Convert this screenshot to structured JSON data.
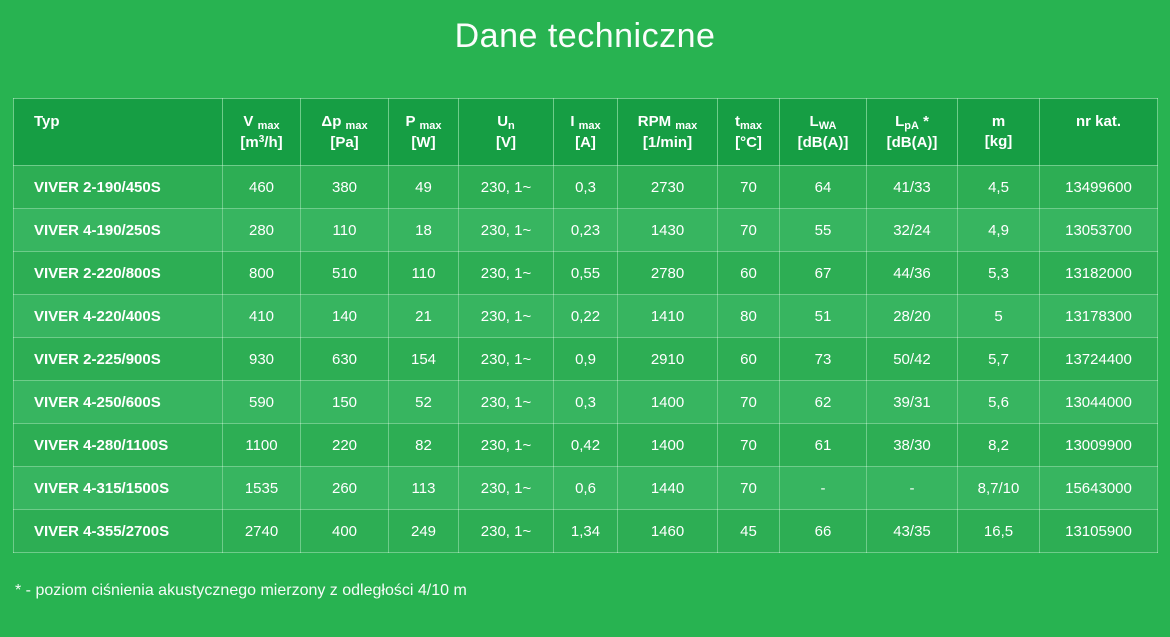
{
  "page": {
    "title": "Dane techniczne",
    "footnote": "* - poziom ciśnienia akustycznego mierzony z odległości 4/10 m",
    "colors": {
      "background": "#28B351",
      "header_bg": "#169E44",
      "row_odd_bg": "#2DAE54",
      "row_even_bg": "#37B560",
      "grid_line": "#5CC47C",
      "text": "#FFFFFF"
    }
  },
  "table": {
    "columns": [
      {
        "id": "typ",
        "sym": "Typ",
        "sub": "",
        "suffix": "",
        "unit": ""
      },
      {
        "id": "v_max",
        "sym": "V ",
        "sub": "max",
        "suffix": "",
        "unit_pre": "[m",
        "unit_sup": "3",
        "unit_post": "/h]"
      },
      {
        "id": "dp_max",
        "sym": "Δp ",
        "sub": "max",
        "suffix": "",
        "unit": "[Pa]"
      },
      {
        "id": "p_max",
        "sym": "P ",
        "sub": "max",
        "suffix": "",
        "unit": "[W]"
      },
      {
        "id": "u_n",
        "sym": "U",
        "sub": "n",
        "suffix": "",
        "unit": "[V]"
      },
      {
        "id": "i_max",
        "sym": "I ",
        "sub": "max",
        "suffix": "",
        "unit": "[A]"
      },
      {
        "id": "rpm_max",
        "sym": "RPM ",
        "sub": "max",
        "suffix": "",
        "unit": "[1/min]"
      },
      {
        "id": "t_max",
        "sym": "t",
        "sub": "max",
        "suffix": "",
        "unit": "[°C]"
      },
      {
        "id": "l_wa",
        "sym": "L",
        "sub": "WA",
        "suffix": "",
        "unit": "[dB(A)]"
      },
      {
        "id": "l_pa",
        "sym": "L",
        "sub": "pA",
        "suffix": " *",
        "unit": "[dB(A)]"
      },
      {
        "id": "m",
        "sym": "m",
        "sub": "",
        "suffix": "",
        "unit": "[kg]"
      },
      {
        "id": "nr_kat",
        "sym": "nr kat.",
        "sub": "",
        "suffix": "",
        "unit": ""
      }
    ],
    "rows": [
      [
        "VIVER 2-190/450S",
        "460",
        "380",
        "49",
        "230, 1~",
        "0,3",
        "2730",
        "70",
        "64",
        "41/33",
        "4,5",
        "13499600"
      ],
      [
        "VIVER 4-190/250S",
        "280",
        "110",
        "18",
        "230, 1~",
        "0,23",
        "1430",
        "70",
        "55",
        "32/24",
        "4,9",
        "13053700"
      ],
      [
        "VIVER 2-220/800S",
        "800",
        "510",
        "110",
        "230, 1~",
        "0,55",
        "2780",
        "60",
        "67",
        "44/36",
        "5,3",
        "13182000"
      ],
      [
        "VIVER 4-220/400S",
        "410",
        "140",
        "21",
        "230, 1~",
        "0,22",
        "1410",
        "80",
        "51",
        "28/20",
        "5",
        "13178300"
      ],
      [
        "VIVER 2-225/900S",
        "930",
        "630",
        "154",
        "230, 1~",
        "0,9",
        "2910",
        "60",
        "73",
        "50/42",
        "5,7",
        "13724400"
      ],
      [
        "VIVER 4-250/600S",
        "590",
        "150",
        "52",
        "230, 1~",
        "0,3",
        "1400",
        "70",
        "62",
        "39/31",
        "5,6",
        "13044000"
      ],
      [
        "VIVER 4-280/1100S",
        "1100",
        "220",
        "82",
        "230, 1~",
        "0,42",
        "1400",
        "70",
        "61",
        "38/30",
        "8,2",
        "13009900"
      ],
      [
        "VIVER 4-315/1500S",
        "1535",
        "260",
        "113",
        "230, 1~",
        "0,6",
        "1440",
        "70",
        "-",
        "-",
        "8,7/10",
        "15643000"
      ],
      [
        "VIVER 4-355/2700S",
        "2740",
        "400",
        "249",
        "230, 1~",
        "1,34",
        "1460",
        "45",
        "66",
        "43/35",
        "16,5",
        "13105900"
      ]
    ]
  }
}
